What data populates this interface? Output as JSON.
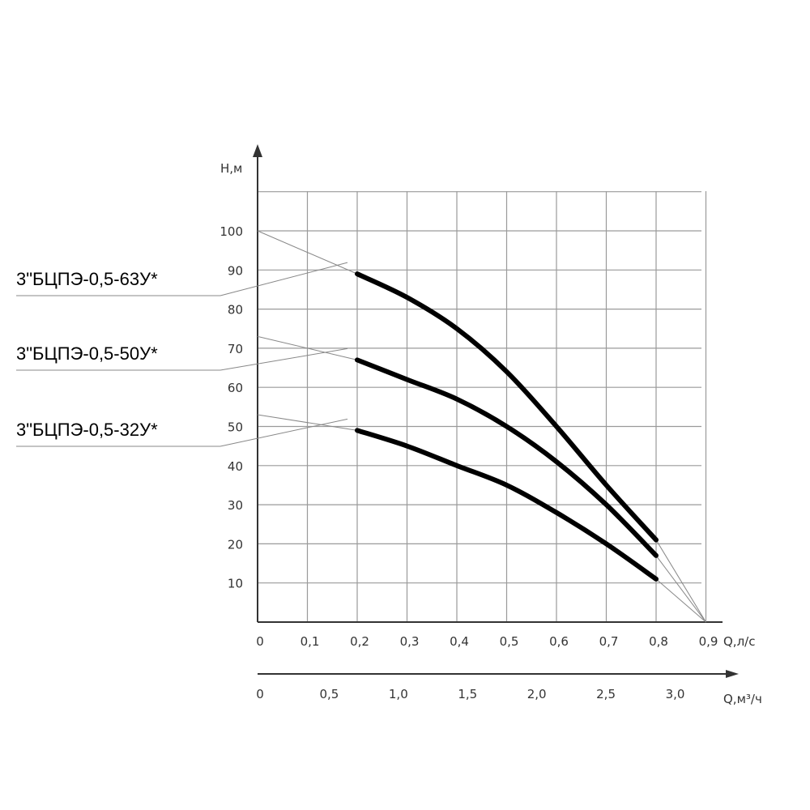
{
  "chart_data": {
    "type": "line",
    "ylabel": "Н,м",
    "xlabel": "Q,л/с",
    "x2label": "Q,м³/ч",
    "xlim": [
      0,
      0.9
    ],
    "ylim": [
      0,
      110
    ],
    "x_ticks": [
      0,
      0.1,
      0.2,
      0.3,
      0.4,
      0.5,
      0.6,
      0.7,
      0.8,
      0.9
    ],
    "x_tick_labels": [
      "0",
      "0,1",
      "0,2",
      "0,3",
      "0,4",
      "0,5",
      "0,6",
      "0,7",
      "0,8",
      "0,9"
    ],
    "y_ticks": [
      10,
      20,
      30,
      40,
      50,
      60,
      70,
      80,
      90,
      100
    ],
    "y_tick_labels": [
      "10",
      "20",
      "30",
      "40",
      "50",
      "60",
      "70",
      "80",
      "90",
      "100"
    ],
    "x2_ticks": [
      0,
      0.5,
      1.0,
      1.5,
      2.0,
      2.5,
      3.0
    ],
    "x2_tick_labels": [
      "0",
      "0,5",
      "1,0",
      "1,5",
      "2,0",
      "2,5",
      "3,0"
    ],
    "grid": true,
    "series": [
      {
        "name": "3\"БЦПЭ-0,5-63У*",
        "x": [
          0.2,
          0.3,
          0.4,
          0.5,
          0.6,
          0.7,
          0.8
        ],
        "y": [
          89,
          83,
          75,
          64,
          50,
          35,
          21
        ],
        "extrapolated": {
          "x": [
            0,
            0.8,
            0.9
          ],
          "y": [
            100,
            21,
            0
          ]
        }
      },
      {
        "name": "3\"БЦПЭ-0,5-50У*",
        "x": [
          0.2,
          0.3,
          0.4,
          0.5,
          0.6,
          0.7,
          0.8
        ],
        "y": [
          67,
          62,
          57,
          50,
          41,
          30,
          17
        ],
        "extrapolated": {
          "x": [
            0,
            0.8,
            0.9
          ],
          "y": [
            73,
            17,
            0
          ]
        }
      },
      {
        "name": "3\"БЦПЭ-0,5-32У*",
        "x": [
          0.2,
          0.3,
          0.4,
          0.5,
          0.6,
          0.7,
          0.8
        ],
        "y": [
          49,
          45,
          40,
          35,
          28,
          20,
          11
        ],
        "extrapolated": {
          "x": [
            0,
            0.8,
            0.9
          ],
          "y": [
            53,
            11,
            0
          ]
        }
      }
    ]
  }
}
